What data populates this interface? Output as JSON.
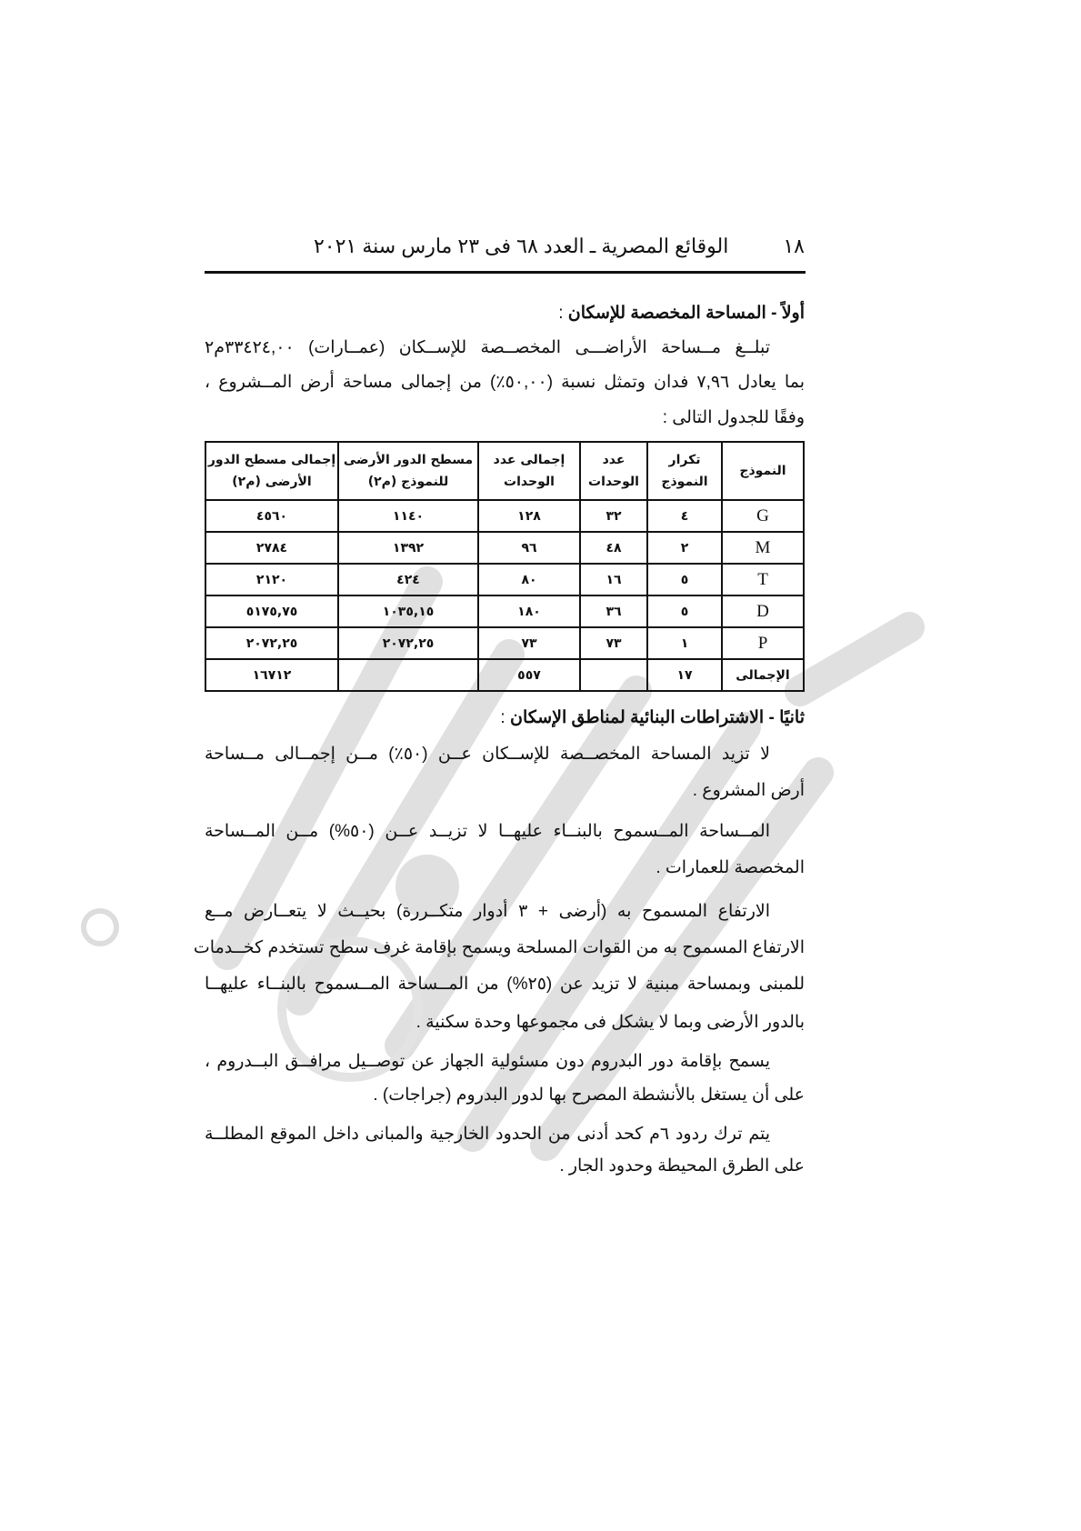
{
  "header": {
    "page_number": "١٨",
    "title": "الوقائع المصرية ـ العدد ٦٨ فى ٢٣ مارس سنة ٢٠٢١"
  },
  "section1": {
    "heading": "أولاً - المساحة المخصصة للإسكان",
    "colon": ":",
    "lines": [
      "تبلــغ مــساحة الأراضـــى المخصــصة للإســكان (عمــارات) ٣٣٤٢٤,٠٠م٢",
      "بما يعادل ٧,٩٦ فدان وتمثل نسبة (٥٠,٠٠٪) من إجمالى مساحة أرض المــشروع ،",
      "وفقًا للجدول التالى :"
    ]
  },
  "table": {
    "headers": [
      "النموذج",
      "تكرار النموذج",
      "عدد الوحدات",
      "إجمالى عدد الوحدات",
      "مسطح الدور الأرضى للنموذج (م٢)",
      "إجمالى مسطح الدور الأرضى (م٢)"
    ],
    "rows": [
      [
        "G",
        "٤",
        "٣٢",
        "١٢٨",
        "١١٤٠",
        "٤٥٦٠"
      ],
      [
        "M",
        "٢",
        "٤٨",
        "٩٦",
        "١٣٩٢",
        "٢٧٨٤"
      ],
      [
        "T",
        "٥",
        "١٦",
        "٨٠",
        "٤٢٤",
        "٢١٢٠"
      ],
      [
        "D",
        "٥",
        "٣٦",
        "١٨٠",
        "١٠٣٥,١٥",
        "٥١٧٥,٧٥"
      ],
      [
        "P",
        "١",
        "٧٣",
        "٧٣",
        "٢٠٧٢,٢٥",
        "٢٠٧٢,٢٥"
      ],
      [
        "الإجمالى",
        "١٧",
        "",
        "٥٥٧",
        "",
        "١٦٧١٢"
      ]
    ]
  },
  "section2": {
    "heading": "ثانيًا - الاشتراطات البنائية لمناطق الإسكان",
    "colon": ":",
    "lines": [
      "لا تزيد المساحة المخصــصة للإســكان عــن (٥٠٪) مــن إجمــالى مــساحة",
      "أرض المشروع .",
      "المــساحة المــسموح بالبنــاء عليهــا لا تزيــد عــن (٥٠%) مــن المــساحة",
      "المخصصة للعمارات .",
      "الارتفاع المسموح به (أرضى + ٣ أدوار متكــررة) بحيــث لا يتعــارض مــع",
      "الارتفاع المسموح به من القوات المسلحة ويسمح بإقامة غرف سطح تستخدم كخــدمات",
      "للمبنى وبمساحة مبنية لا تزيد عن (٢٥%) من المــساحة المــسموح بالبنــاء عليهــا",
      "بالدور الأرضى وبما لا يشكل فى مجموعها وحدة سكنية .",
      "يسمح بإقامة دور البدروم دون مسئولية الجهاز عن توصــيل مرافــق البــدروم ،",
      "على أن يستغل بالأنشطة المصرح بها لدور البدروم (جراجات) .",
      "يتم ترك ردود ٦م كحد أدنى من الحدود الخارجية والمبانى داخل الموقع المطلــة",
      "على الطرق المحيطة وحدود الجار ."
    ]
  },
  "watermark": {
    "color": "#d9d9d9"
  }
}
